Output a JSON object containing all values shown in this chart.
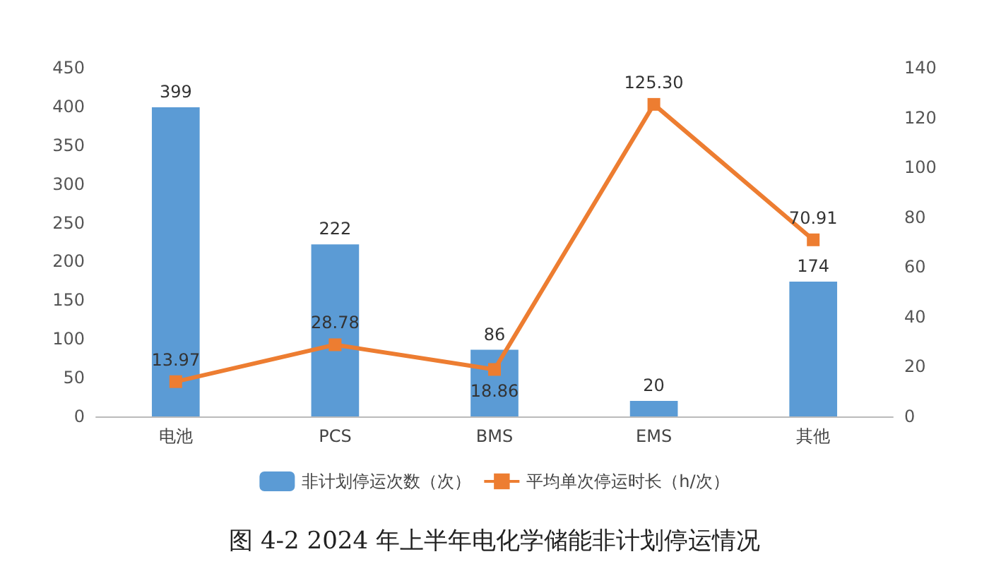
{
  "chart_data": {
    "type": "bar",
    "title": "图 4-2 2024 年上半年电化学储能非计划停运情况",
    "categories": [
      "电池",
      "PCS",
      "BMS",
      "EMS",
      "其他"
    ],
    "series": [
      {
        "name": "非计划停运次数（次）",
        "color": "#5b9bd5",
        "values": [
          399,
          222,
          86,
          20,
          174
        ]
      },
      {
        "name": "平均单次停运时长（h/次）",
        "type": "line",
        "axis": "y2",
        "color": "#ed7d31",
        "values": [
          13.97,
          28.78,
          18.86,
          125.3,
          70.91
        ],
        "value_labels": [
          "13.97",
          "28.78",
          "18.86",
          "125.30",
          "70.91"
        ]
      }
    ],
    "ylim": [
      0,
      450
    ],
    "yticks": [
      0,
      50,
      100,
      150,
      200,
      250,
      300,
      350,
      400,
      450
    ],
    "y2lim": [
      0,
      140
    ],
    "y2ticks": [
      0,
      20,
      40,
      60,
      80,
      100,
      120,
      140
    ],
    "legend": "bottom",
    "marker": "square",
    "data_labels": true
  }
}
